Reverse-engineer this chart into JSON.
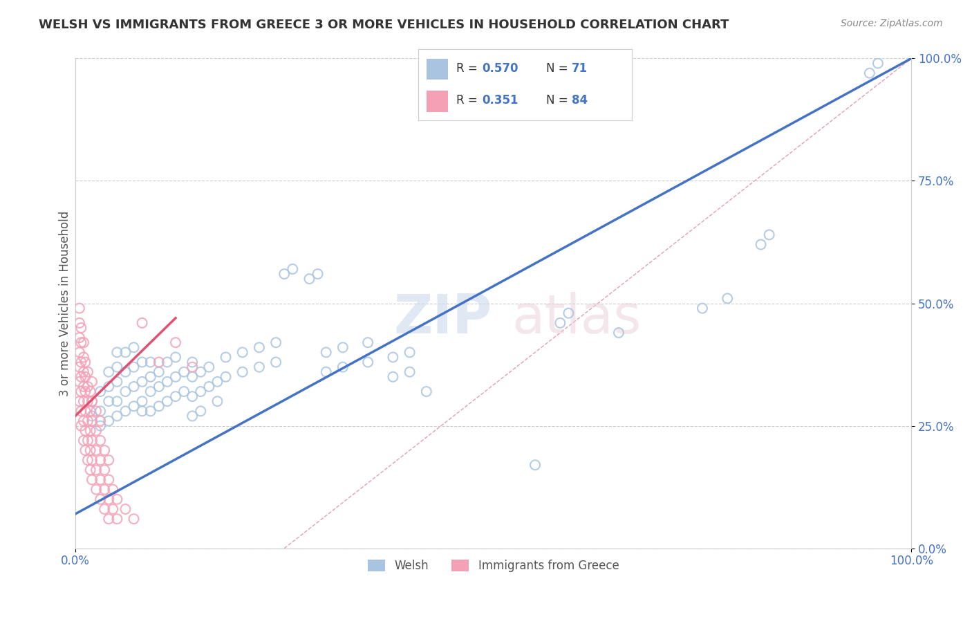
{
  "title": "WELSH VS IMMIGRANTS FROM GREECE 3 OR MORE VEHICLES IN HOUSEHOLD CORRELATION CHART",
  "source": "Source: ZipAtlas.com",
  "ylabel": "3 or more Vehicles in Household",
  "xlim": [
    0.0,
    1.0
  ],
  "ylim": [
    0.0,
    1.0
  ],
  "ytick_positions": [
    0.0,
    0.25,
    0.5,
    0.75,
    1.0
  ],
  "blue_scatter": [
    [
      0.02,
      0.27
    ],
    [
      0.02,
      0.3
    ],
    [
      0.03,
      0.25
    ],
    [
      0.03,
      0.28
    ],
    [
      0.03,
      0.32
    ],
    [
      0.04,
      0.26
    ],
    [
      0.04,
      0.3
    ],
    [
      0.04,
      0.33
    ],
    [
      0.04,
      0.36
    ],
    [
      0.05,
      0.27
    ],
    [
      0.05,
      0.3
    ],
    [
      0.05,
      0.34
    ],
    [
      0.05,
      0.37
    ],
    [
      0.05,
      0.4
    ],
    [
      0.06,
      0.28
    ],
    [
      0.06,
      0.32
    ],
    [
      0.06,
      0.36
    ],
    [
      0.06,
      0.4
    ],
    [
      0.07,
      0.29
    ],
    [
      0.07,
      0.33
    ],
    [
      0.07,
      0.37
    ],
    [
      0.07,
      0.41
    ],
    [
      0.08,
      0.28
    ],
    [
      0.08,
      0.3
    ],
    [
      0.08,
      0.34
    ],
    [
      0.08,
      0.38
    ],
    [
      0.09,
      0.28
    ],
    [
      0.09,
      0.32
    ],
    [
      0.09,
      0.35
    ],
    [
      0.09,
      0.38
    ],
    [
      0.1,
      0.29
    ],
    [
      0.1,
      0.33
    ],
    [
      0.1,
      0.36
    ],
    [
      0.11,
      0.3
    ],
    [
      0.11,
      0.34
    ],
    [
      0.11,
      0.38
    ],
    [
      0.12,
      0.31
    ],
    [
      0.12,
      0.35
    ],
    [
      0.12,
      0.39
    ],
    [
      0.13,
      0.32
    ],
    [
      0.13,
      0.36
    ],
    [
      0.14,
      0.27
    ],
    [
      0.14,
      0.31
    ],
    [
      0.14,
      0.35
    ],
    [
      0.14,
      0.38
    ],
    [
      0.15,
      0.28
    ],
    [
      0.15,
      0.32
    ],
    [
      0.15,
      0.36
    ],
    [
      0.16,
      0.33
    ],
    [
      0.16,
      0.37
    ],
    [
      0.17,
      0.3
    ],
    [
      0.17,
      0.34
    ],
    [
      0.18,
      0.35
    ],
    [
      0.18,
      0.39
    ],
    [
      0.2,
      0.36
    ],
    [
      0.2,
      0.4
    ],
    [
      0.22,
      0.37
    ],
    [
      0.22,
      0.41
    ],
    [
      0.24,
      0.38
    ],
    [
      0.24,
      0.42
    ],
    [
      0.25,
      0.56
    ],
    [
      0.26,
      0.57
    ],
    [
      0.28,
      0.55
    ],
    [
      0.29,
      0.56
    ],
    [
      0.3,
      0.36
    ],
    [
      0.3,
      0.4
    ],
    [
      0.32,
      0.37
    ],
    [
      0.32,
      0.41
    ],
    [
      0.35,
      0.38
    ],
    [
      0.35,
      0.42
    ],
    [
      0.38,
      0.35
    ],
    [
      0.38,
      0.39
    ],
    [
      0.4,
      0.36
    ],
    [
      0.4,
      0.4
    ],
    [
      0.42,
      0.32
    ],
    [
      0.55,
      0.17
    ],
    [
      0.58,
      0.46
    ],
    [
      0.59,
      0.48
    ],
    [
      0.65,
      0.44
    ],
    [
      0.75,
      0.49
    ],
    [
      0.78,
      0.51
    ],
    [
      0.82,
      0.62
    ],
    [
      0.83,
      0.64
    ],
    [
      0.95,
      0.97
    ],
    [
      0.96,
      0.99
    ]
  ],
  "pink_scatter": [
    [
      0.005,
      0.3
    ],
    [
      0.005,
      0.34
    ],
    [
      0.005,
      0.37
    ],
    [
      0.005,
      0.4
    ],
    [
      0.005,
      0.43
    ],
    [
      0.005,
      0.46
    ],
    [
      0.005,
      0.49
    ],
    [
      0.007,
      0.25
    ],
    [
      0.007,
      0.28
    ],
    [
      0.007,
      0.32
    ],
    [
      0.007,
      0.35
    ],
    [
      0.007,
      0.38
    ],
    [
      0.007,
      0.42
    ],
    [
      0.007,
      0.45
    ],
    [
      0.01,
      0.22
    ],
    [
      0.01,
      0.26
    ],
    [
      0.01,
      0.3
    ],
    [
      0.01,
      0.33
    ],
    [
      0.01,
      0.36
    ],
    [
      0.01,
      0.39
    ],
    [
      0.01,
      0.42
    ],
    [
      0.012,
      0.2
    ],
    [
      0.012,
      0.24
    ],
    [
      0.012,
      0.28
    ],
    [
      0.012,
      0.32
    ],
    [
      0.012,
      0.35
    ],
    [
      0.012,
      0.38
    ],
    [
      0.015,
      0.18
    ],
    [
      0.015,
      0.22
    ],
    [
      0.015,
      0.26
    ],
    [
      0.015,
      0.3
    ],
    [
      0.015,
      0.33
    ],
    [
      0.015,
      0.36
    ],
    [
      0.018,
      0.16
    ],
    [
      0.018,
      0.2
    ],
    [
      0.018,
      0.24
    ],
    [
      0.018,
      0.28
    ],
    [
      0.018,
      0.32
    ],
    [
      0.02,
      0.14
    ],
    [
      0.02,
      0.18
    ],
    [
      0.02,
      0.22
    ],
    [
      0.02,
      0.26
    ],
    [
      0.02,
      0.3
    ],
    [
      0.02,
      0.34
    ],
    [
      0.025,
      0.12
    ],
    [
      0.025,
      0.16
    ],
    [
      0.025,
      0.2
    ],
    [
      0.025,
      0.24
    ],
    [
      0.025,
      0.28
    ],
    [
      0.03,
      0.1
    ],
    [
      0.03,
      0.14
    ],
    [
      0.03,
      0.18
    ],
    [
      0.03,
      0.22
    ],
    [
      0.03,
      0.26
    ],
    [
      0.035,
      0.08
    ],
    [
      0.035,
      0.12
    ],
    [
      0.035,
      0.16
    ],
    [
      0.035,
      0.2
    ],
    [
      0.04,
      0.06
    ],
    [
      0.04,
      0.1
    ],
    [
      0.04,
      0.14
    ],
    [
      0.04,
      0.18
    ],
    [
      0.045,
      0.08
    ],
    [
      0.045,
      0.12
    ],
    [
      0.05,
      0.06
    ],
    [
      0.05,
      0.1
    ],
    [
      0.06,
      0.08
    ],
    [
      0.07,
      0.06
    ],
    [
      0.08,
      0.46
    ],
    [
      0.1,
      0.38
    ],
    [
      0.12,
      0.42
    ],
    [
      0.14,
      0.37
    ]
  ],
  "blue_line_x": [
    0.0,
    1.0
  ],
  "blue_line_y": [
    0.07,
    1.0
  ],
  "pink_line_x": [
    0.0,
    0.12
  ],
  "pink_line_y": [
    0.27,
    0.47
  ],
  "ref_line_x": [
    0.25,
    1.0
  ],
  "ref_line_y": [
    0.0,
    1.0
  ],
  "scatter_size": 100,
  "bg_color": "#ffffff",
  "grid_color": "#cccccc",
  "blue_color": "#a8c4e0",
  "pink_color": "#f4a0b5",
  "blue_line_color": "#4472c4",
  "pink_line_color": "#e05070",
  "ref_line_color": "#e0a0b0",
  "title_color": "#333333",
  "axis_label_color": "#555555",
  "tick_color": "#4472c4"
}
